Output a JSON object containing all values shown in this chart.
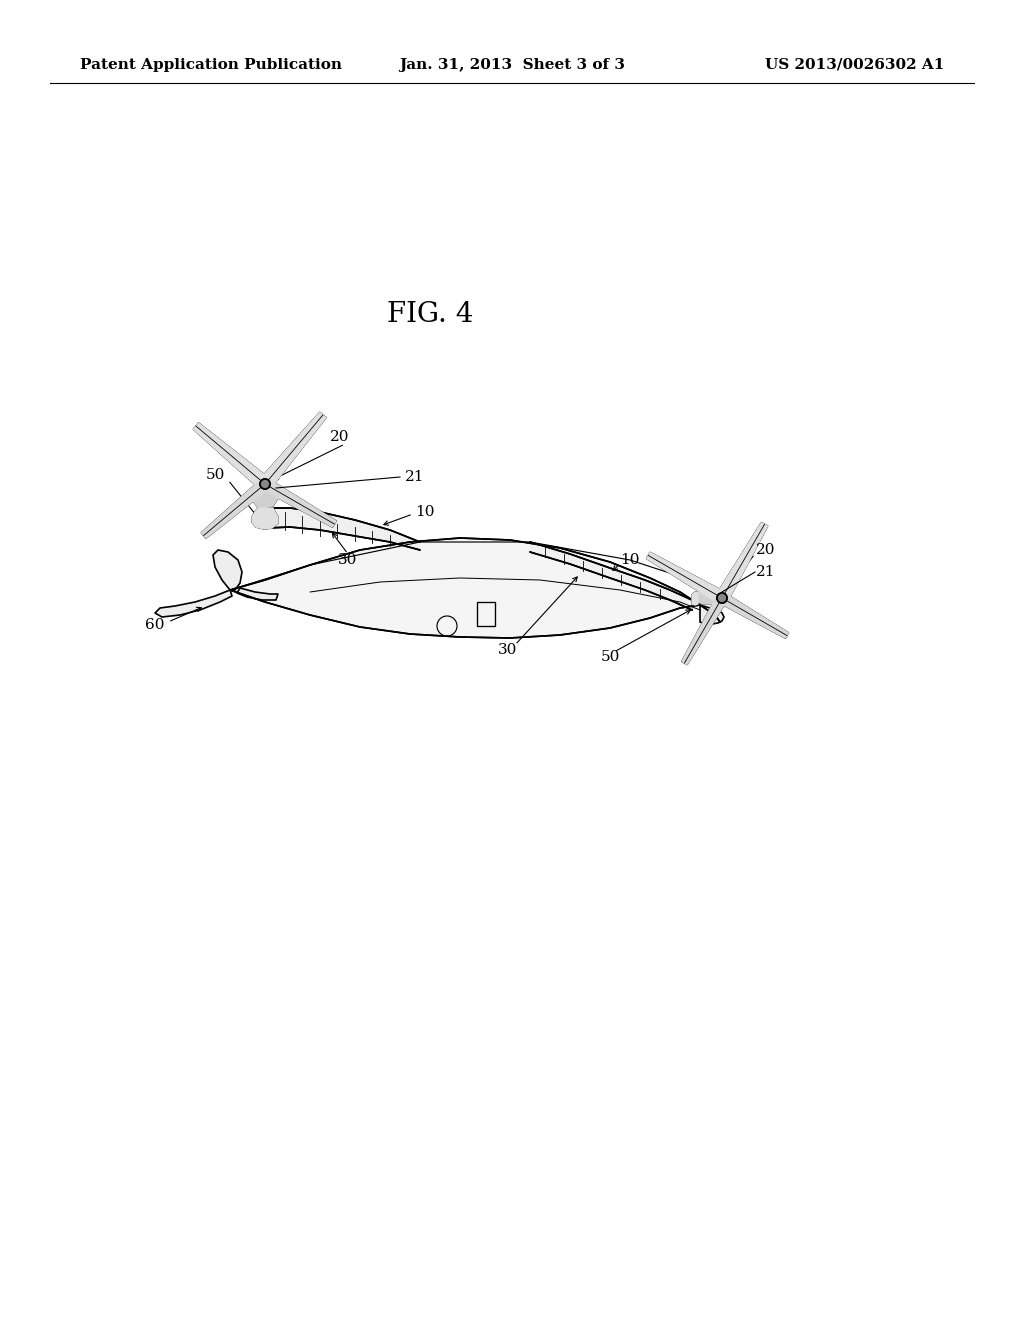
{
  "background_color": "#ffffff",
  "header_left": "Patent Application Publication",
  "header_center": "Jan. 31, 2013  Sheet 3 of 3",
  "header_right": "US 2013/0026302 A1",
  "fig_label": "FIG. 4",
  "header_fontsize": 11,
  "ref_fontsize": 11,
  "fig_label_fontsize": 20,
  "line_color": "#000000",
  "line_width": 1.2
}
